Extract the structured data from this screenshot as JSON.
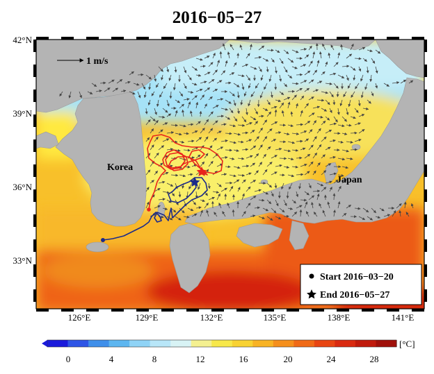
{
  "title": "2016−05−27",
  "map": {
    "lat_labels": [
      "42°N",
      "39°N",
      "36°N",
      "33°N"
    ],
    "lon_labels": [
      "126°E",
      "129°E",
      "132°E",
      "135°E",
      "138°E",
      "141°E"
    ],
    "place_labels": {
      "korea": "Korea",
      "japan": "Japan"
    },
    "vector_scale": "1 m/s",
    "legend": {
      "start": "Start  2016−03−20",
      "end": "End   2016−05−27"
    },
    "track_colors": {
      "red": "#e8241c",
      "blue": "#1b2a8a"
    },
    "land_color": "#b4b4b4"
  },
  "colorbar": {
    "unit": "[°C]",
    "ticks": [
      "0",
      "4",
      "8",
      "12",
      "16",
      "20",
      "24",
      "28"
    ],
    "colors": [
      "#1a1adb",
      "#2e55e6",
      "#3f8fea",
      "#5db6f0",
      "#8fd3f6",
      "#b8e6f8",
      "#d8f3f5",
      "#f4f090",
      "#f7e84a",
      "#f8d232",
      "#f8b324",
      "#f58f1c",
      "#f06a16",
      "#e84512",
      "#d92a10",
      "#c01a0c",
      "#a0100a"
    ]
  }
}
